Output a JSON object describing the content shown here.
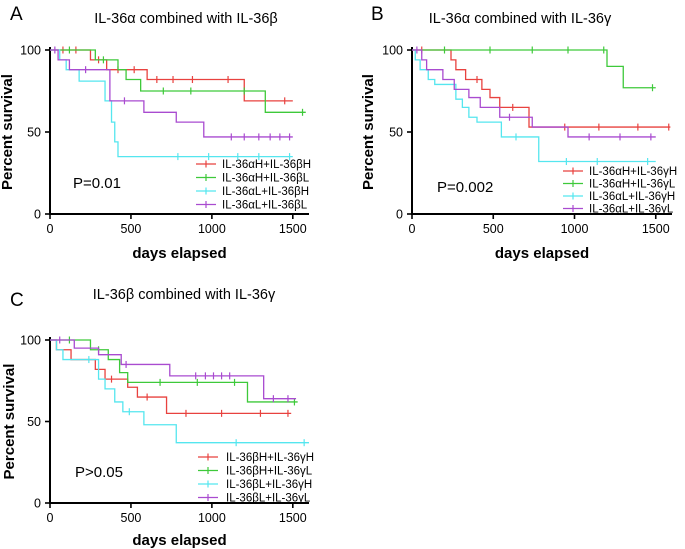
{
  "figure": {
    "panels": [
      "A",
      "B",
      "C"
    ]
  },
  "chart_data": [
    {
      "type": "line",
      "subtype": "kaplan-meier",
      "panel_label": "A",
      "title": "IL-36α combined with IL-36β",
      "xlabel": "days elapsed",
      "ylabel": "Percent survival",
      "xlim": [
        0,
        1600
      ],
      "ylim": [
        0,
        100
      ],
      "xticks": [
        0,
        500,
        1000,
        1500
      ],
      "yticks": [
        0,
        50,
        100
      ],
      "grid": false,
      "legend_position": "bottom-right",
      "p_value": "P=0.01",
      "series": [
        {
          "name": "IL-36αH+IL-36βH",
          "color": "#e8423f",
          "steps": [
            [
              0,
              100
            ],
            [
              250,
              94
            ],
            [
              350,
              88
            ],
            [
              600,
              82
            ],
            [
              1200,
              69
            ],
            [
              1500,
              69
            ]
          ],
          "censor": [
            [
              80,
              100
            ],
            [
              160,
              100
            ],
            [
              300,
              94
            ],
            [
              420,
              88
            ],
            [
              520,
              88
            ],
            [
              660,
              82
            ],
            [
              760,
              82
            ],
            [
              880,
              82
            ],
            [
              1100,
              82
            ],
            [
              1450,
              69
            ]
          ]
        },
        {
          "name": "IL-36αH+IL-36βL",
          "color": "#3ec93a",
          "steps": [
            [
              0,
              100
            ],
            [
              280,
              94
            ],
            [
              420,
              88
            ],
            [
              470,
              82
            ],
            [
              560,
              75
            ],
            [
              1330,
              62
            ],
            [
              1580,
              62
            ]
          ],
          "censor": [
            [
              120,
              100
            ],
            [
              330,
              94
            ],
            [
              700,
              75
            ],
            [
              870,
              75
            ],
            [
              1200,
              75
            ],
            [
              1560,
              62
            ]
          ]
        },
        {
          "name": "IL-36αL+IL-36βH",
          "color": "#55e6ef",
          "steps": [
            [
              0,
              100
            ],
            [
              60,
              94
            ],
            [
              100,
              88
            ],
            [
              180,
              81
            ],
            [
              340,
              69
            ],
            [
              380,
              56
            ],
            [
              400,
              44
            ],
            [
              420,
              35
            ],
            [
              1500,
              35
            ]
          ],
          "censor": [
            [
              790,
              35
            ],
            [
              980,
              35
            ],
            [
              1160,
              35
            ],
            [
              1290,
              35
            ],
            [
              1480,
              35
            ]
          ]
        },
        {
          "name": "IL-36αL+IL-36βL",
          "color": "#a94bd0",
          "steps": [
            [
              0,
              100
            ],
            [
              50,
              94
            ],
            [
              120,
              88
            ],
            [
              370,
              69
            ],
            [
              580,
              62
            ],
            [
              780,
              56
            ],
            [
              950,
              47
            ],
            [
              1500,
              47
            ]
          ],
          "censor": [
            [
              30,
              100
            ],
            [
              220,
              88
            ],
            [
              460,
              69
            ],
            [
              1120,
              47
            ],
            [
              1200,
              47
            ],
            [
              1290,
              47
            ],
            [
              1360,
              47
            ],
            [
              1420,
              47
            ],
            [
              1480,
              47
            ]
          ]
        }
      ]
    },
    {
      "type": "line",
      "subtype": "kaplan-meier",
      "panel_label": "B",
      "title": "IL-36α combined with IL-36γ",
      "xlabel": "days elapsed",
      "ylabel": "Percent survival",
      "xlim": [
        0,
        1600
      ],
      "ylim": [
        0,
        100
      ],
      "xticks": [
        0,
        500,
        1000,
        1500
      ],
      "yticks": [
        0,
        50,
        100
      ],
      "grid": false,
      "legend_position": "bottom-right",
      "p_value": "P=0.002",
      "series": [
        {
          "name": "IL-36αH+IL-36γH",
          "color": "#e8423f",
          "steps": [
            [
              0,
              100
            ],
            [
              240,
              94
            ],
            [
              270,
              88
            ],
            [
              330,
              82
            ],
            [
              430,
              76
            ],
            [
              480,
              71
            ],
            [
              540,
              65
            ],
            [
              720,
              53
            ],
            [
              1590,
              53
            ]
          ],
          "censor": [
            [
              60,
              100
            ],
            [
              400,
              82
            ],
            [
              620,
              65
            ],
            [
              940,
              53
            ],
            [
              1150,
              53
            ],
            [
              1390,
              53
            ],
            [
              1580,
              53
            ]
          ]
        },
        {
          "name": "IL-36αH+IL-36γL",
          "color": "#3ec93a",
          "steps": [
            [
              0,
              100
            ],
            [
              1200,
              90
            ],
            [
              1300,
              77
            ],
            [
              1500,
              77
            ]
          ],
          "censor": [
            [
              200,
              100
            ],
            [
              480,
              100
            ],
            [
              740,
              100
            ],
            [
              960,
              100
            ],
            [
              1180,
              100
            ],
            [
              1480,
              77
            ]
          ]
        },
        {
          "name": "IL-36αL+IL-36γH",
          "color": "#55e6ef",
          "steps": [
            [
              0,
              100
            ],
            [
              20,
              94
            ],
            [
              50,
              88
            ],
            [
              100,
              82
            ],
            [
              140,
              79
            ],
            [
              270,
              70
            ],
            [
              310,
              65
            ],
            [
              350,
              59
            ],
            [
              400,
              56
            ],
            [
              550,
              47
            ],
            [
              780,
              32
            ],
            [
              1500,
              32
            ]
          ],
          "censor": [
            [
              640,
              47
            ],
            [
              950,
              32
            ],
            [
              1140,
              32
            ],
            [
              1450,
              32
            ]
          ]
        },
        {
          "name": "IL-36αL+IL-36γL",
          "color": "#a94bd0",
          "steps": [
            [
              0,
              100
            ],
            [
              60,
              94
            ],
            [
              90,
              88
            ],
            [
              190,
              82
            ],
            [
              260,
              76
            ],
            [
              350,
              71
            ],
            [
              420,
              65
            ],
            [
              540,
              59
            ],
            [
              740,
              53
            ],
            [
              960,
              47
            ],
            [
              1500,
              47
            ]
          ],
          "censor": [
            [
              30,
              100
            ],
            [
              600,
              59
            ],
            [
              1090,
              47
            ],
            [
              1280,
              47
            ],
            [
              1470,
              47
            ]
          ]
        }
      ]
    },
    {
      "type": "line",
      "subtype": "kaplan-meier",
      "panel_label": "C",
      "title": "IL-36β combined with IL-36γ",
      "xlabel": "days elapsed",
      "ylabel": "Percent survival",
      "xlim": [
        0,
        1600
      ],
      "ylim": [
        0,
        100
      ],
      "xticks": [
        0,
        500,
        1000,
        1500
      ],
      "yticks": [
        0,
        50,
        100
      ],
      "grid": false,
      "legend_position": "bottom-right",
      "p_value": "P>0.05",
      "series": [
        {
          "name": "IL-36βH+IL-36γH",
          "color": "#e8423f",
          "steps": [
            [
              0,
              100
            ],
            [
              40,
              94
            ],
            [
              130,
              88
            ],
            [
              280,
              82
            ],
            [
              340,
              76
            ],
            [
              480,
              71
            ],
            [
              540,
              65
            ],
            [
              720,
              55
            ],
            [
              1490,
              55
            ]
          ],
          "censor": [
            [
              380,
              76
            ],
            [
              600,
              65
            ],
            [
              840,
              55
            ],
            [
              1060,
              55
            ],
            [
              1300,
              55
            ],
            [
              1470,
              55
            ]
          ]
        },
        {
          "name": "IL-36βH+IL-36γL",
          "color": "#3ec93a",
          "steps": [
            [
              0,
              100
            ],
            [
              250,
              94
            ],
            [
              360,
              88
            ],
            [
              430,
              80
            ],
            [
              480,
              74
            ],
            [
              1220,
              62
            ],
            [
              1530,
              62
            ]
          ],
          "censor": [
            [
              120,
              100
            ],
            [
              300,
              94
            ],
            [
              680,
              74
            ],
            [
              910,
              74
            ],
            [
              1140,
              74
            ],
            [
              1510,
              62
            ]
          ]
        },
        {
          "name": "IL-36βL+IL-36γH",
          "color": "#55e6ef",
          "steps": [
            [
              0,
              100
            ],
            [
              40,
              94
            ],
            [
              80,
              88
            ],
            [
              200,
              88
            ],
            [
              300,
              76
            ],
            [
              340,
              70
            ],
            [
              400,
              62
            ],
            [
              450,
              56
            ],
            [
              580,
              48
            ],
            [
              780,
              37
            ],
            [
              1600,
              37
            ]
          ],
          "censor": [
            [
              240,
              88
            ],
            [
              490,
              56
            ],
            [
              1150,
              37
            ],
            [
              1570,
              37
            ]
          ]
        },
        {
          "name": "IL-36βL+IL-36γL",
          "color": "#a94bd0",
          "steps": [
            [
              0,
              100
            ],
            [
              150,
              95
            ],
            [
              300,
              91
            ],
            [
              440,
              85
            ],
            [
              740,
              78
            ],
            [
              1320,
              64
            ],
            [
              1520,
              64
            ]
          ],
          "censor": [
            [
              60,
              100
            ],
            [
              470,
              85
            ],
            [
              900,
              78
            ],
            [
              960,
              78
            ],
            [
              1010,
              78
            ],
            [
              1060,
              78
            ],
            [
              1110,
              78
            ],
            [
              1380,
              64
            ],
            [
              1470,
              64
            ]
          ]
        }
      ]
    }
  ]
}
